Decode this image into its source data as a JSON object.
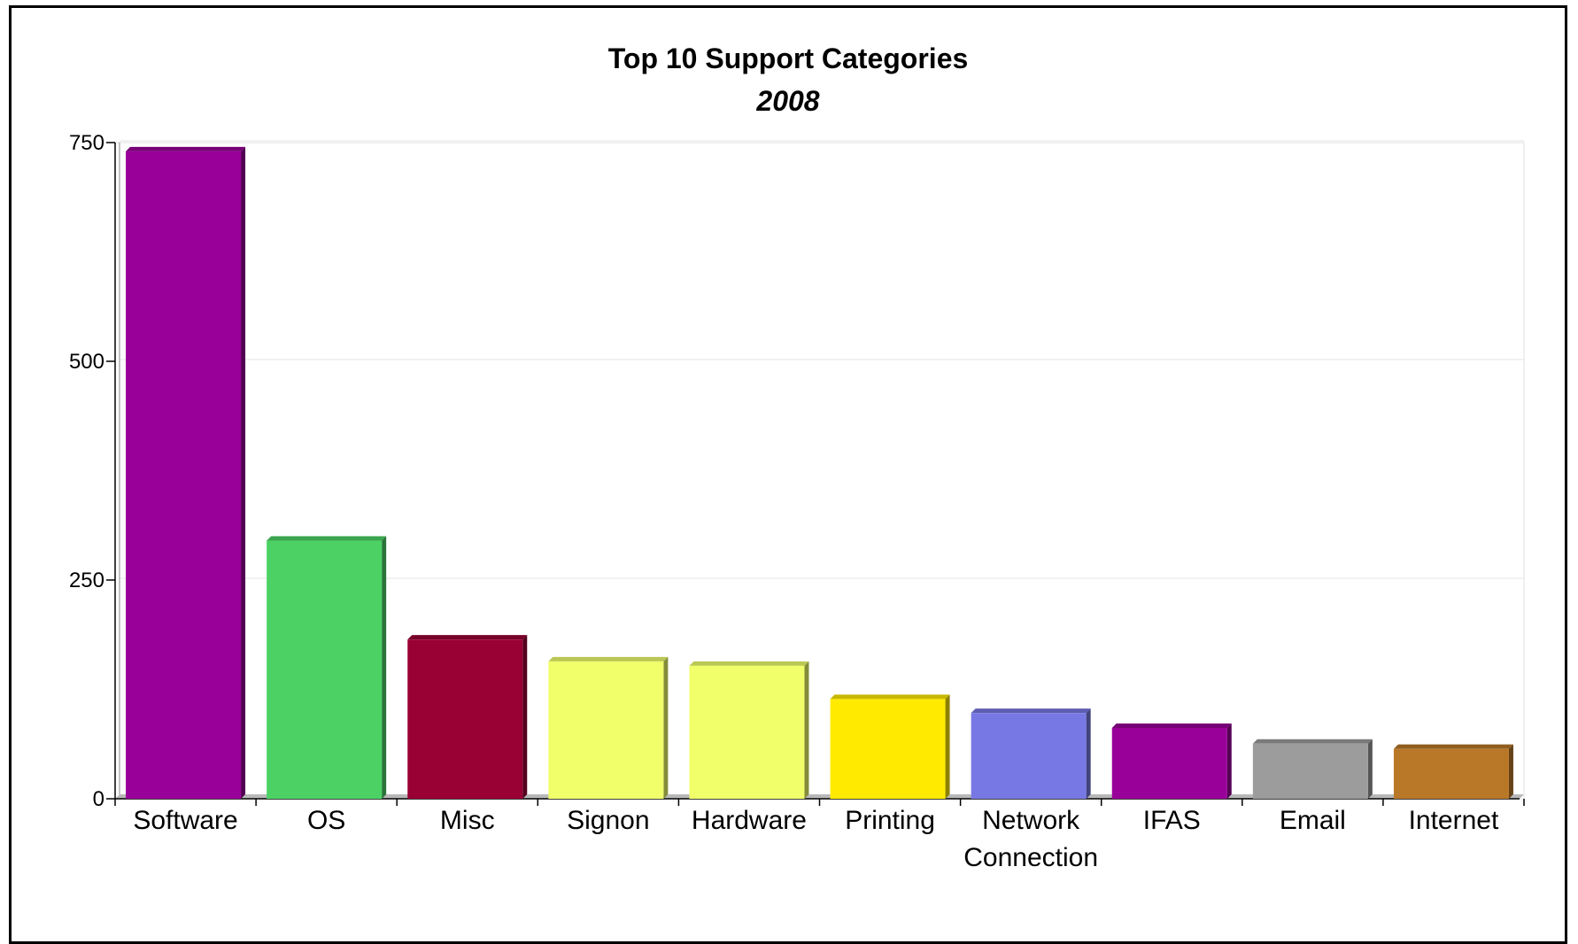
{
  "chart_data": {
    "type": "bar",
    "title": "Top 10 Support Categories",
    "subtitle": "2008",
    "xlabel": "",
    "ylabel": "",
    "ylim": [
      0,
      750
    ],
    "yticks": [
      0,
      250,
      500,
      750
    ],
    "ytick_labels": [
      "0",
      "250",
      "500",
      "750"
    ],
    "grid": true,
    "categories": [
      "Software",
      "OS",
      "Misc",
      "Signon",
      "Hardware",
      "Printing",
      "Network Connection",
      "IFAS",
      "Email",
      "Internet"
    ],
    "category_lines": [
      [
        "Software"
      ],
      [
        "OS"
      ],
      [
        "Misc"
      ],
      [
        "Signon"
      ],
      [
        "Hardware"
      ],
      [
        "Printing"
      ],
      [
        "Network",
        "Connection"
      ],
      [
        "IFAS"
      ],
      [
        "Email"
      ],
      [
        "Internet"
      ]
    ],
    "values": [
      740,
      295,
      182,
      157,
      152,
      114,
      98,
      81,
      63,
      57
    ],
    "colors": [
      "#990099",
      "#4CD264",
      "#990033",
      "#F0FF6A",
      "#F0FF6A",
      "#FFEA00",
      "#7878E4",
      "#990099",
      "#9C9C9C",
      "#B87828"
    ]
  }
}
